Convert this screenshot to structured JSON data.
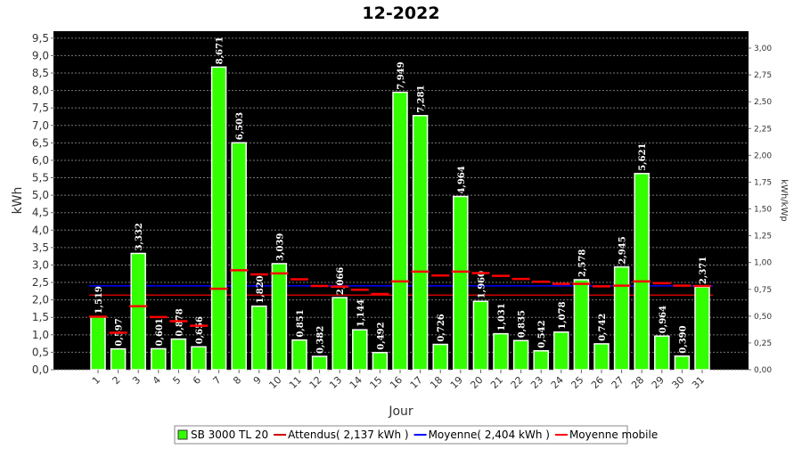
{
  "chart_data": {
    "type": "bar",
    "title": "12-2022",
    "x_label": "Jour",
    "y_label": "kWh",
    "y2_label": "kWh/kWp",
    "categories": [
      "1",
      "2",
      "3",
      "4",
      "5",
      "6",
      "7",
      "8",
      "9",
      "10",
      "11",
      "12",
      "13",
      "14",
      "15",
      "16",
      "17",
      "18",
      "19",
      "20",
      "21",
      "22",
      "23",
      "24",
      "25",
      "26",
      "27",
      "28",
      "29",
      "30",
      "31"
    ],
    "series": [
      {
        "name": "SB 3000 TL 20",
        "color": "#33ff00",
        "values": [
          1.519,
          0.597,
          3.332,
          0.601,
          0.878,
          0.656,
          8.671,
          6.503,
          1.82,
          3.039,
          0.851,
          0.382,
          2.066,
          1.144,
          0.492,
          7.949,
          7.281,
          0.726,
          4.964,
          1.96,
          1.031,
          0.835,
          0.542,
          1.078,
          2.578,
          0.742,
          2.945,
          5.621,
          0.964,
          0.39,
          2.371
        ],
        "value_labels": [
          "1,519",
          "0,597",
          "3,332",
          "0,601",
          "0,878",
          "0,656",
          "8,671",
          "6,503",
          "1,820",
          "3,039",
          "0,851",
          "0,382",
          "2,066",
          "1,144",
          "0,492",
          "7,949",
          "7,281",
          "0,726",
          "4,964",
          "1,960",
          "1,031",
          "0,835",
          "0,542",
          "1,078",
          "2,578",
          "0,742",
          "2,945",
          "5,621",
          "0,964",
          "0,390",
          "2,371"
        ]
      },
      {
        "name": "Moyenne mobile",
        "color": "#ff0000",
        "type": "step",
        "values": [
          1.52,
          1.06,
          1.82,
          1.51,
          1.39,
          1.26,
          2.32,
          2.85,
          2.73,
          2.76,
          2.59,
          2.4,
          2.38,
          2.29,
          2.17,
          2.53,
          2.81,
          2.7,
          2.81,
          2.77,
          2.69,
          2.6,
          2.52,
          2.46,
          2.46,
          2.39,
          2.41,
          2.53,
          2.48,
          2.41,
          2.4
        ]
      }
    ],
    "reference_lines": [
      {
        "name": "Attendus( 2,137 kWh )",
        "value": 2.137,
        "color": "#cc0000"
      },
      {
        "name": "Moyenne( 2,404 kWh )",
        "value": 2.404,
        "color": "#0000ff"
      }
    ],
    "ylim": [
      0,
      9.7
    ],
    "yticks": [
      {
        "value": 0,
        "label": "0,0"
      },
      {
        "value": 0.5,
        "label": "0,5"
      },
      {
        "value": 1,
        "label": "1,0"
      },
      {
        "value": 1.5,
        "label": "1,5"
      },
      {
        "value": 2,
        "label": "2,0"
      },
      {
        "value": 2.5,
        "label": "2,5"
      },
      {
        "value": 3,
        "label": "3,0"
      },
      {
        "value": 3.5,
        "label": "3,5"
      },
      {
        "value": 4,
        "label": "4,0"
      },
      {
        "value": 4.5,
        "label": "4,5"
      },
      {
        "value": 5,
        "label": "5,0"
      },
      {
        "value": 5.5,
        "label": "5,5"
      },
      {
        "value": 6,
        "label": "6,0"
      },
      {
        "value": 6.5,
        "label": "6,5"
      },
      {
        "value": 7,
        "label": "7,0"
      },
      {
        "value": 7.5,
        "label": "7,5"
      },
      {
        "value": 8,
        "label": "8,0"
      },
      {
        "value": 8.5,
        "label": "8,5"
      },
      {
        "value": 9,
        "label": "9,0"
      },
      {
        "value": 9.5,
        "label": "9,5"
      }
    ],
    "y2lim": [
      0,
      3.158
    ],
    "y2ticks": [
      {
        "value": 0,
        "label": "0,00"
      },
      {
        "value": 0.25,
        "label": "0,25"
      },
      {
        "value": 0.5,
        "label": "0,50"
      },
      {
        "value": 0.75,
        "label": "0,75"
      },
      {
        "value": 1,
        "label": "1,00"
      },
      {
        "value": 1.25,
        "label": "1,25"
      },
      {
        "value": 1.5,
        "label": "1,50"
      },
      {
        "value": 1.75,
        "label": "1,75"
      },
      {
        "value": 2,
        "label": "2,00"
      },
      {
        "value": 2.25,
        "label": "2,25"
      },
      {
        "value": 2.5,
        "label": "2,50"
      },
      {
        "value": 2.75,
        "label": "2,75"
      },
      {
        "value": 3,
        "label": "3,00"
      }
    ],
    "grid": true
  }
}
